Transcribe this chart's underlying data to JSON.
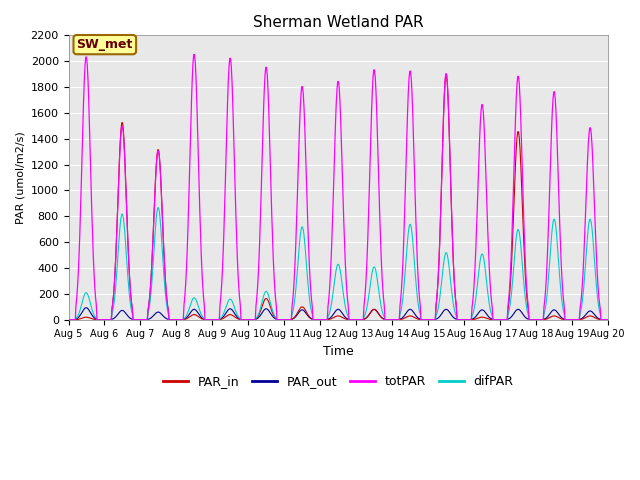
{
  "title": "Sherman Wetland PAR",
  "xlabel": "Time",
  "ylabel": "PAR (umol/m2/s)",
  "ylim": [
    0,
    2200
  ],
  "yticks": [
    0,
    200,
    400,
    600,
    800,
    1000,
    1200,
    1400,
    1600,
    1800,
    2000,
    2200
  ],
  "start_day": 5,
  "end_day": 20,
  "n_days": 15,
  "colors": {
    "PAR_in": "#cc0000",
    "PAR_out": "#000099",
    "totPAR": "#ff00ff",
    "difPAR": "#00cccc"
  },
  "annotation_text": "SW_met",
  "annotation_bg": "#ffff99",
  "annotation_border": "#996600",
  "annotation_text_color": "#660000",
  "plot_bg_color": "#e8e8e8",
  "fig_bg_color": "#ffffff",
  "totPAR_peaks": [
    2040,
    1500,
    1310,
    2060,
    2030,
    1960,
    1810,
    1850,
    1940,
    1930,
    1910,
    1670,
    1890,
    1770,
    1490
  ],
  "difPAR_peaks": [
    210,
    820,
    870,
    170,
    160,
    220,
    720,
    430,
    410,
    740,
    520,
    510,
    700,
    780,
    780
  ],
  "PARin_peaks": [
    20,
    1530,
    1320,
    40,
    40,
    165,
    100,
    30,
    80,
    30,
    1900,
    20,
    1460,
    30,
    30
  ],
  "PARout_peaks": [
    110,
    85,
    70,
    95,
    100,
    100,
    90,
    95,
    95,
    95,
    95,
    90,
    95,
    90,
    80
  ]
}
